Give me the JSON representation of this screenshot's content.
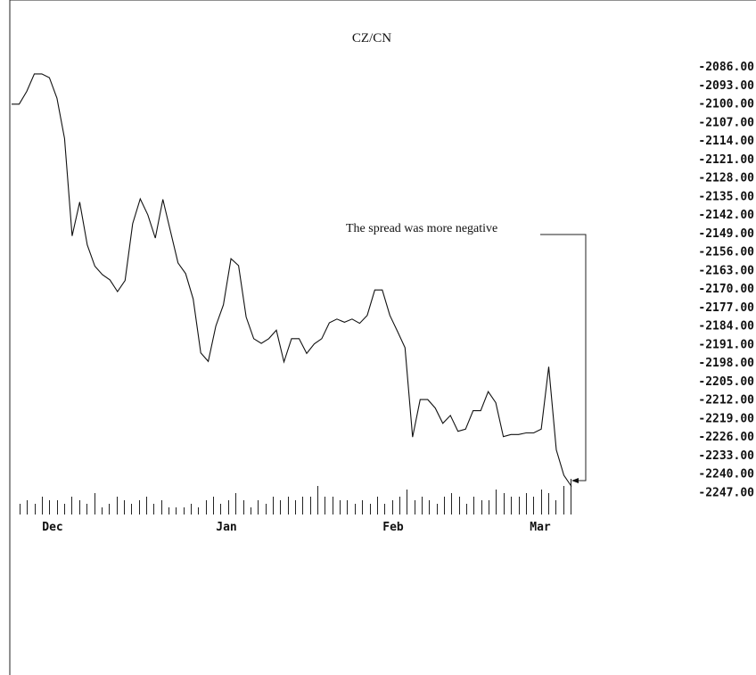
{
  "chart_data": {
    "type": "line",
    "title": "CZ/CN",
    "xlabel": "",
    "ylabel": "",
    "x_tick_labels": [
      "Dec",
      "Jan",
      "Feb",
      "Mar"
    ],
    "y_tick_labels": [
      "-2086.00",
      "-2093.00",
      "-2100.00",
      "-2107.00",
      "-2114.00",
      "-2121.00",
      "-2128.00",
      "-2135.00",
      "-2142.00",
      "-2149.00",
      "-2156.00",
      "-2163.00",
      "-2170.00",
      "-2177.00",
      "-2184.00",
      "-2191.00",
      "-2198.00",
      "-2205.00",
      "-2212.00",
      "-2219.00",
      "-2226.00",
      "-2233.00",
      "-2240.00",
      "-2247.00"
    ],
    "ylim": [
      -2247,
      -2086
    ],
    "grid": false,
    "legend": "none",
    "annotation": "The spread was more negative",
    "series": [
      {
        "values": [
          -2100.4,
          -2100.4,
          -2095.6,
          -2089.0,
          -2089.0,
          -2090.4,
          -2098.2,
          -2113.4,
          -2150.2,
          -2137.4,
          -2153.6,
          -2161.6,
          -2164.8,
          -2166.8,
          -2171.2,
          -2167.0,
          -2145.6,
          -2136.2,
          -2142.2,
          -2151.0,
          -2136.4,
          -2148.4,
          -2160.4,
          -2164.4,
          -2174.0,
          -2194.4,
          -2197.6,
          -2184.2,
          -2176.2,
          -2158.8,
          -2161.4,
          -2180.8,
          -2189.0,
          -2190.8,
          -2189.0,
          -2185.8,
          -2197.8,
          -2189.0,
          -2189.0,
          -2194.6,
          -2191.0,
          -2189.0,
          -2183.0,
          -2181.6,
          -2182.8,
          -2181.6,
          -2183.2,
          -2180.2,
          -2170.6,
          -2170.6,
          -2180.2,
          -2186.2,
          -2192.4,
          -2226.2,
          -2212.0,
          -2212.0,
          -2215.2,
          -2221.0,
          -2218.0,
          -2224.0,
          -2223.2,
          -2216.2,
          -2216.2,
          -2209.0,
          -2213.2,
          -2226.0,
          -2225.2,
          -2225.2,
          -2224.6,
          -2224.6,
          -2223.2,
          -2199.6,
          -2231.0,
          -2240.6,
          -2244.8
        ],
        "volume": [
          3,
          4,
          3,
          5,
          4,
          4,
          3,
          5,
          4,
          3,
          6,
          2,
          3,
          5,
          4,
          3,
          4,
          5,
          3,
          4,
          2,
          2,
          2,
          3,
          2,
          4,
          5,
          3,
          4,
          6,
          4,
          2,
          4,
          3,
          5,
          4,
          5,
          4,
          5,
          5,
          8,
          5,
          5,
          4,
          4,
          3,
          4,
          3,
          5,
          3,
          4,
          5,
          7,
          4,
          5,
          4,
          3,
          5,
          6,
          5,
          3,
          5,
          4,
          4,
          7,
          6,
          5,
          5,
          6,
          5,
          7,
          6,
          4,
          8,
          10
        ]
      }
    ]
  }
}
